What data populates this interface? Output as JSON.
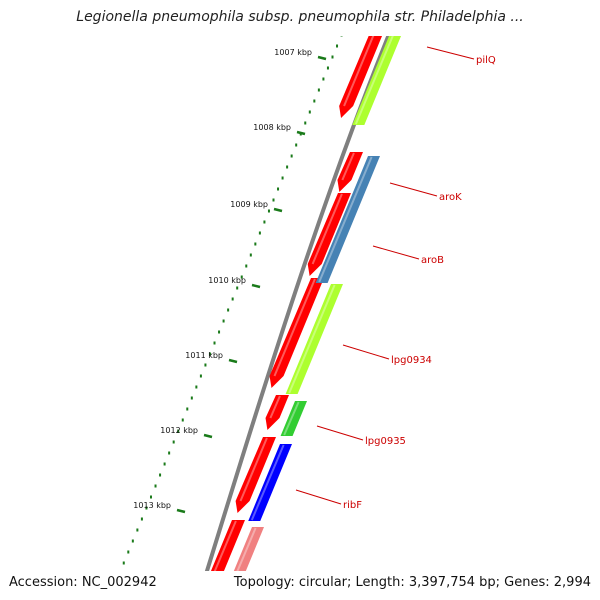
{
  "map": {
    "title": "Legionella pneumophila subsp. pneumophila str. Philadelphia ...",
    "accession": "Accession: NC_002942",
    "summary": "Topology: circular; Length: 3,397,754 bp; Genes: 2,994"
  },
  "ticks": [
    {
      "label": "1007 kbp"
    },
    {
      "label": "1008 kbp"
    },
    {
      "label": "1009 kbp"
    },
    {
      "label": "1010 kbp"
    },
    {
      "label": "1011 kbp"
    },
    {
      "label": "1012 kbp"
    },
    {
      "label": "1013 kbp"
    }
  ],
  "genes": [
    {
      "name": "pilQ",
      "color": "#adff2f"
    },
    {
      "name": "aroK",
      "color": "#4682b4"
    },
    {
      "name": "aroB",
      "color": "#4682b4"
    },
    {
      "name": "lpg0934",
      "color": "#adff2f"
    },
    {
      "name": "lpg0935",
      "color": "#32cd32"
    },
    {
      "name": "ribF",
      "color": "#0000ff"
    }
  ],
  "colors": {
    "backbone": "#7f7f7f",
    "cds_track": "#ff0000",
    "tick": "#1a7a1a",
    "label": "#cc0000",
    "faded_cds": "#f08080"
  }
}
